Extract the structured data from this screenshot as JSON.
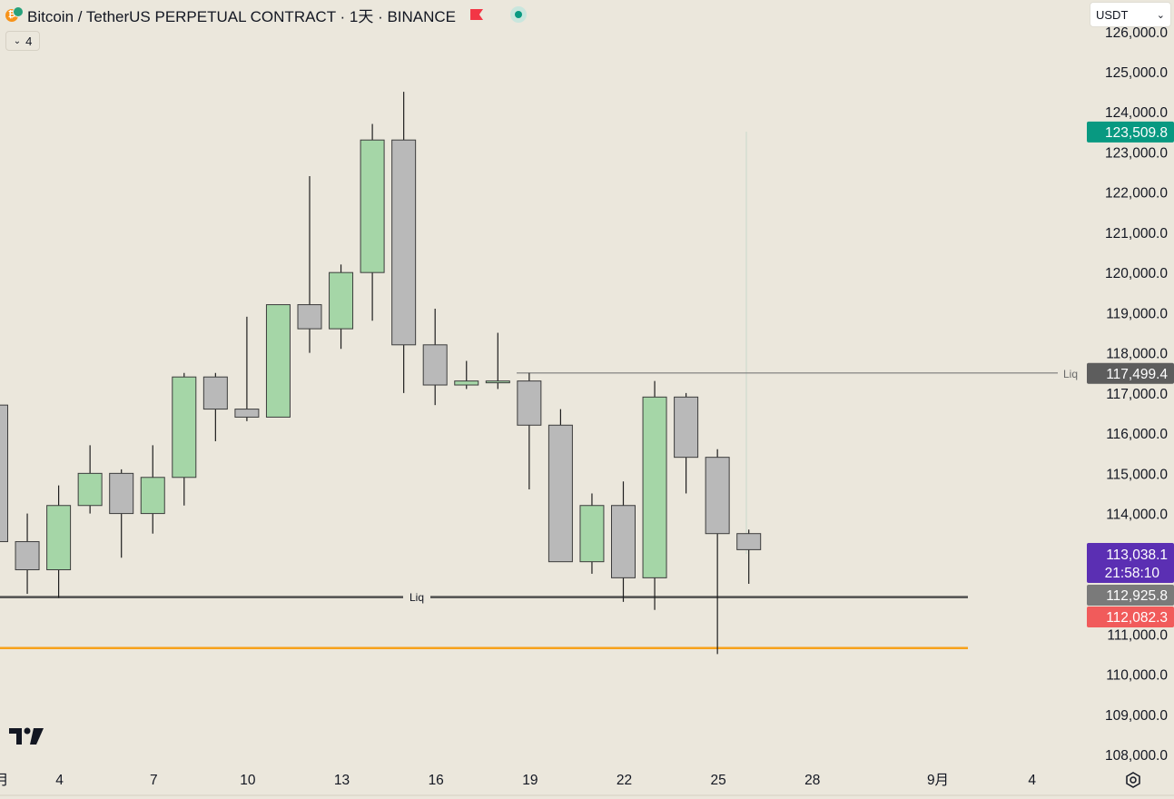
{
  "header": {
    "symbol": "Bitcoin / TetherUS PERPETUAL CONTRACT · 1天 · BINANCE",
    "indicator_count": "4",
    "currency": "USDT"
  },
  "chart_data": {
    "type": "candlestick",
    "x_ticks": [
      {
        "label": "4",
        "idx": 2
      },
      {
        "label": "7",
        "idx": 5
      },
      {
        "label": "10",
        "idx": 8
      },
      {
        "label": "13",
        "idx": 11
      },
      {
        "label": "16",
        "idx": 14
      },
      {
        "label": "19",
        "idx": 17
      },
      {
        "label": "22",
        "idx": 20
      },
      {
        "label": "25",
        "idx": 23
      },
      {
        "label": "28",
        "idx": 26
      },
      {
        "label": "9月",
        "idx": 30
      },
      {
        "label": "4",
        "idx": 33
      }
    ],
    "x_edge_label": "月",
    "y_ticks": [
      "108,000.0",
      "109,000.0",
      "110,000.0",
      "111,000.0",
      "113,000.0",
      "114,000.0",
      "115,000.0",
      "116,000.0",
      "117,000.0",
      "118,000.0",
      "119,000.0",
      "120,000.0",
      "121,000.0",
      "122,000.0",
      "123,000.0",
      "124,000.0",
      "125,000.0",
      "126,000.0"
    ],
    "ylim": [
      107500,
      126100
    ],
    "candles": [
      {
        "o": 116700,
        "h": 116700,
        "l": 113300,
        "c": 113300
      },
      {
        "o": 113300,
        "h": 114000,
        "l": 112000,
        "c": 112600
      },
      {
        "o": 112600,
        "h": 114700,
        "l": 111900,
        "c": 114200
      },
      {
        "o": 114200,
        "h": 115700,
        "l": 114000,
        "c": 115000
      },
      {
        "o": 115000,
        "h": 115100,
        "l": 112900,
        "c": 114000
      },
      {
        "o": 114000,
        "h": 115700,
        "l": 113500,
        "c": 114900
      },
      {
        "o": 114900,
        "h": 117500,
        "l": 114200,
        "c": 117400
      },
      {
        "o": 117400,
        "h": 117500,
        "l": 115800,
        "c": 116600
      },
      {
        "o": 116600,
        "h": 118900,
        "l": 116300,
        "c": 116400
      },
      {
        "o": 116400,
        "h": 119200,
        "l": 116400,
        "c": 119200
      },
      {
        "o": 119200,
        "h": 122400,
        "l": 118000,
        "c": 118600
      },
      {
        "o": 118600,
        "h": 120200,
        "l": 118100,
        "c": 120000
      },
      {
        "o": 120000,
        "h": 123700,
        "l": 118800,
        "c": 123300
      },
      {
        "o": 123300,
        "h": 124500,
        "l": 117000,
        "c": 118200
      },
      {
        "o": 118200,
        "h": 119100,
        "l": 116700,
        "c": 117200
      },
      {
        "o": 117200,
        "h": 117800,
        "l": 117100,
        "c": 117300
      },
      {
        "o": 117300,
        "h": 118500,
        "l": 117100,
        "c": 117300
      },
      {
        "o": 117300,
        "h": 117500,
        "l": 114600,
        "c": 116200
      },
      {
        "o": 116200,
        "h": 116600,
        "l": 112800,
        "c": 112800
      },
      {
        "o": 112800,
        "h": 114500,
        "l": 112500,
        "c": 114200
      },
      {
        "o": 114200,
        "h": 114800,
        "l": 111800,
        "c": 112400
      },
      {
        "o": 112400,
        "h": 117300,
        "l": 111600,
        "c": 116900
      },
      {
        "o": 116900,
        "h": 117000,
        "l": 114500,
        "c": 115400
      },
      {
        "o": 115400,
        "h": 115600,
        "l": 110500,
        "c": 113500
      },
      {
        "o": 113500,
        "h": 113600,
        "l": 112250,
        "c": 113100
      }
    ],
    "hlines": [
      {
        "name": "liq-line-upper",
        "value": 117499.4,
        "from_idx": 16.6,
        "label": "Liq",
        "label_at": "right"
      },
      {
        "name": "liq-line-lower",
        "value": 111920,
        "label": "Liq",
        "label_at": "middle"
      },
      {
        "name": "orange-line",
        "value": 110650
      }
    ],
    "price_tags": [
      {
        "name": "tag-123509",
        "value": 123509.8,
        "text": "123,509.8",
        "bg": "#089981"
      },
      {
        "name": "tag-liq-117499",
        "value": 117499.4,
        "text": "117,499.4",
        "bg": "#5d5d5d",
        "side_label": "Liq"
      },
      {
        "name": "tag-last-price",
        "value": 113038.1,
        "text": "113,038.1",
        "countdown": "21:58:10",
        "bg": "#5b2fb3"
      },
      {
        "name": "tag-112925",
        "value": 112925.8,
        "text": "112,925.8",
        "bg": "#7a7a7a"
      },
      {
        "name": "tag-112082",
        "value": 112082.3,
        "text": "112,082.3",
        "bg": "#f15b5b"
      }
    ],
    "colors": {
      "up_fill": "#a5d6a7",
      "down_fill": "#b9b9b9",
      "outline": "#3c3c3c",
      "orange": "#f7a21b",
      "liq": "#4f4f4f"
    }
  }
}
